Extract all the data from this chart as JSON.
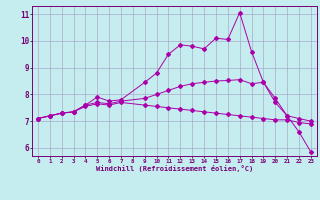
{
  "xlabel": "Windchill (Refroidissement éolien,°C)",
  "background_color": "#c5ecee",
  "line_color": "#aa00aa",
  "grid_color": "#aaaacc",
  "xlim": [
    -0.5,
    23.5
  ],
  "ylim": [
    5.7,
    11.3
  ],
  "xticks": [
    0,
    1,
    2,
    3,
    4,
    5,
    6,
    7,
    8,
    9,
    10,
    11,
    12,
    13,
    14,
    15,
    16,
    17,
    18,
    19,
    20,
    21,
    22,
    23
  ],
  "yticks": [
    6,
    7,
    8,
    9,
    10,
    11
  ],
  "line1_y": [
    7.1,
    7.2,
    7.3,
    7.35,
    7.6,
    7.9,
    7.75,
    7.8,
    8.45,
    8.8,
    9.5,
    9.85,
    9.8,
    9.7,
    10.1,
    10.05,
    11.05,
    9.6,
    8.45,
    7.7,
    7.2,
    6.6,
    5.85
  ],
  "line1_x": [
    0,
    1,
    2,
    3,
    4,
    5,
    6,
    7,
    9,
    10,
    11,
    12,
    13,
    14,
    15,
    16,
    17,
    18,
    19,
    20,
    21,
    22,
    23
  ],
  "line2_y": [
    7.1,
    7.2,
    7.3,
    7.35,
    7.6,
    7.7,
    7.65,
    7.75,
    7.85,
    8.0,
    8.15,
    8.3,
    8.4,
    8.45,
    8.5,
    8.52,
    8.55,
    8.4,
    8.45,
    7.85,
    7.2,
    7.1,
    7.0
  ],
  "line2_x": [
    0,
    1,
    2,
    3,
    4,
    5,
    6,
    7,
    9,
    10,
    11,
    12,
    13,
    14,
    15,
    16,
    17,
    18,
    19,
    20,
    21,
    22,
    23
  ],
  "line3_y": [
    7.1,
    7.2,
    7.3,
    7.35,
    7.55,
    7.65,
    7.6,
    7.7,
    7.6,
    7.55,
    7.5,
    7.45,
    7.4,
    7.35,
    7.3,
    7.25,
    7.2,
    7.15,
    7.1,
    7.05,
    7.05,
    6.95,
    6.9
  ],
  "line3_x": [
    0,
    1,
    2,
    3,
    4,
    5,
    6,
    7,
    9,
    10,
    11,
    12,
    13,
    14,
    15,
    16,
    17,
    18,
    19,
    20,
    21,
    22,
    23
  ],
  "figsize": [
    3.2,
    2.0
  ],
  "dpi": 100
}
